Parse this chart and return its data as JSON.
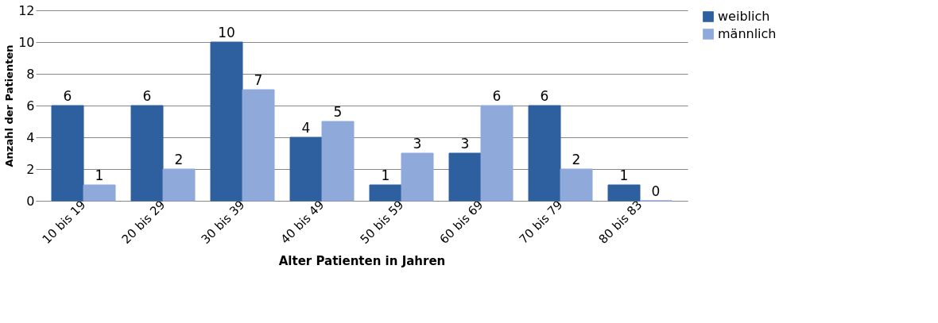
{
  "chart_data": {
    "type": "bar",
    "xlabel": "Alter Patienten in Jahren",
    "ylabel": "Anzahl der Patienten",
    "categories": [
      "10 bis 19",
      "20 bis 29",
      "30 bis 39",
      "40 bis 49",
      "50 bis 59",
      "60 bis 69",
      "70 bis 79",
      "80 bis 83"
    ],
    "series": [
      {
        "name": "weiblich",
        "color": "#2e5f9e",
        "values": [
          6,
          6,
          10,
          4,
          1,
          3,
          6,
          1
        ]
      },
      {
        "name": "männlich",
        "color": "#8fa9da",
        "values": [
          1,
          2,
          7,
          5,
          3,
          6,
          2,
          0
        ]
      }
    ],
    "ylim": [
      0,
      12
    ],
    "yticks": [
      0,
      2,
      4,
      6,
      8,
      10,
      12
    ],
    "grid": "y",
    "legend": "right",
    "data_labels": true
  }
}
